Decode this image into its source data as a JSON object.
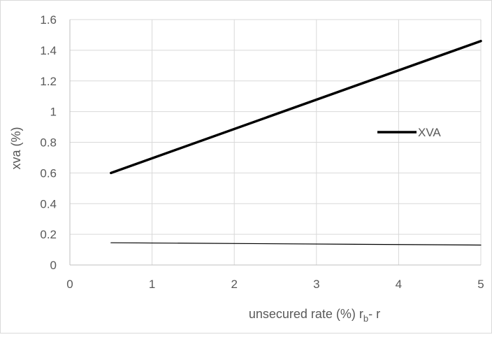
{
  "chart_data": {
    "type": "line",
    "title": "",
    "xlabel": {
      "main": "unsecured rate (%) r",
      "subscript": "b",
      "suffix": "- r"
    },
    "ylabel": "xva (%)",
    "xlim": [
      0,
      5
    ],
    "ylim": [
      0,
      1.6
    ],
    "x_ticks": [
      0,
      1,
      2,
      3,
      4,
      5
    ],
    "y_ticks": [
      0,
      0.2,
      0.4,
      0.6,
      0.8,
      1,
      1.2,
      1.4,
      1.6
    ],
    "x_tick_labels": [
      "0",
      "1",
      "2",
      "3",
      "4",
      "5"
    ],
    "y_tick_labels": [
      "0",
      "0.2",
      "0.4",
      "0.6",
      "0.8",
      "1",
      "1.2",
      "1.4",
      "1.6"
    ],
    "grid": true,
    "legend_position": "right",
    "series": [
      {
        "name": "XVA",
        "color": "#000000",
        "line": "thick",
        "x": [
          0.5,
          5
        ],
        "y": [
          0.6,
          1.46
        ]
      },
      {
        "name": "",
        "color": "#000000",
        "line": "thin",
        "x": [
          0.5,
          5
        ],
        "y": [
          0.145,
          0.13
        ]
      }
    ]
  }
}
